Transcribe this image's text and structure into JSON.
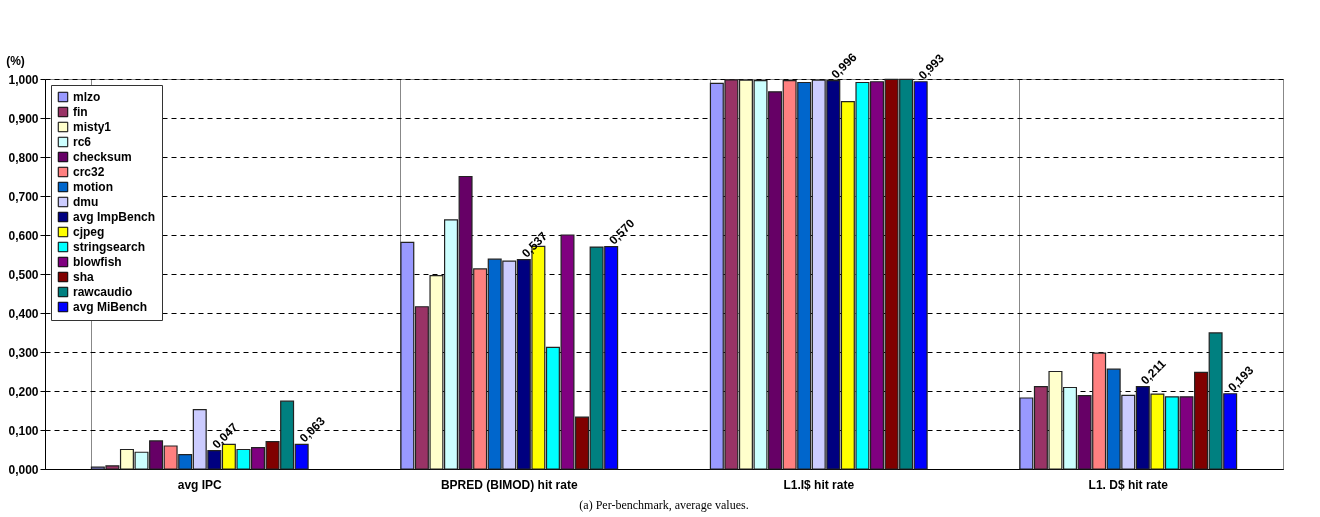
{
  "chart_data": {
    "type": "bar",
    "ylabel": "(%)",
    "annotations": [
      "(a) Per-benchmark, average values."
    ],
    "categories": [
      "avg IPC",
      "BPRED (BIMOD) hit rate",
      "L1.I$ hit rate",
      "L1. D$ hit rate"
    ],
    "ylim": [
      0,
      1
    ],
    "yticks": [
      {
        "value": 0,
        "label": "0,000"
      },
      {
        "value": 0.1,
        "label": "0,100"
      },
      {
        "value": 0.2,
        "label": "0,200"
      },
      {
        "value": 0.3,
        "label": "0,300"
      },
      {
        "value": 0.4,
        "label": "0,400"
      },
      {
        "value": 0.5,
        "label": "0,500"
      },
      {
        "value": 0.6,
        "label": "0,600"
      },
      {
        "value": 0.7,
        "label": "0,700"
      },
      {
        "value": 0.8,
        "label": "0,800"
      },
      {
        "value": 0.9,
        "label": "0,900"
      },
      {
        "value": 1,
        "label": "1,000"
      }
    ],
    "grid": true,
    "legend": "top left",
    "series": [
      {
        "name": "mlzo",
        "color": "#9999ff",
        "values": [
          0.005,
          0.581,
          0.989,
          0.182
        ]
      },
      {
        "name": "fin",
        "color": "#993366",
        "values": [
          0.008,
          0.416,
          0.998,
          0.211
        ]
      },
      {
        "name": "misty1",
        "color": "#ffffcc",
        "values": [
          0.05,
          0.496,
          0.997,
          0.25
        ]
      },
      {
        "name": "rc6",
        "color": "#ccffff",
        "values": [
          0.043,
          0.639,
          0.996,
          0.209
        ]
      },
      {
        "name": "checksum",
        "color": "#660066",
        "values": [
          0.072,
          0.75,
          0.967,
          0.188
        ]
      },
      {
        "name": "crc32",
        "color": "#ff8080",
        "values": [
          0.059,
          0.513,
          0.996,
          0.297
        ]
      },
      {
        "name": "motion",
        "color": "#0066cc",
        "values": [
          0.037,
          0.538,
          0.991,
          0.256
        ]
      },
      {
        "name": "dmu",
        "color": "#ccccff",
        "values": [
          0.152,
          0.533,
          0.997,
          0.189
        ]
      },
      {
        "name": "avg ImpBench",
        "color": "#000080",
        "values": [
          0.047,
          0.537,
          0.996,
          0.211
        ],
        "value_labels": [
          "0,047",
          "0,537",
          "0,996",
          "0,211"
        ]
      },
      {
        "name": "cjpeg",
        "color": "#ffff00",
        "values": [
          0.063,
          0.571,
          0.942,
          0.192
        ]
      },
      {
        "name": "stringsearch",
        "color": "#00ffff",
        "values": [
          0.05,
          0.312,
          0.991,
          0.185
        ]
      },
      {
        "name": "blowfish",
        "color": "#800080",
        "values": [
          0.055,
          0.6,
          0.993,
          0.185
        ]
      },
      {
        "name": "sha",
        "color": "#800000",
        "values": [
          0.07,
          0.133,
          0.999,
          0.248
        ]
      },
      {
        "name": "rawcaudio",
        "color": "#008080",
        "values": [
          0.174,
          0.569,
          0.999,
          0.349
        ]
      },
      {
        "name": "avg MiBench",
        "color": "#0000ff",
        "values": [
          0.063,
          0.57,
          0.993,
          0.193
        ],
        "value_labels": [
          "0,063",
          "0,570",
          "0,993",
          "0,193"
        ]
      }
    ]
  }
}
